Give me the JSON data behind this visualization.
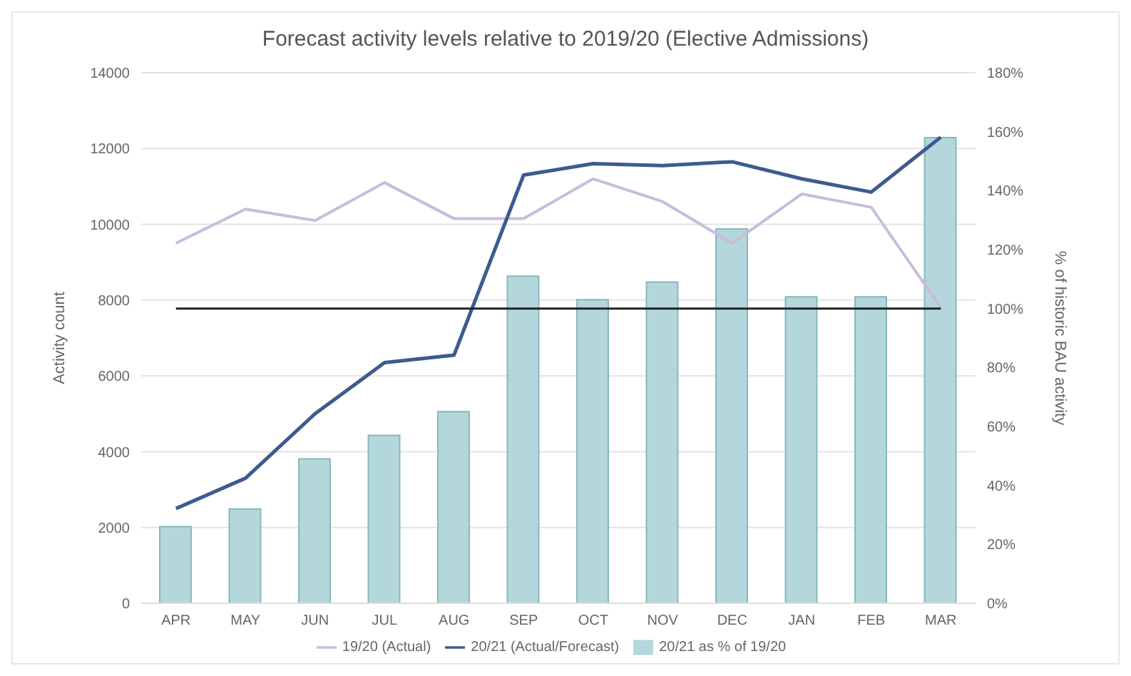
{
  "chart_data": {
    "type": "bar",
    "title": "Forecast activity levels relative to 2019/20 (Elective Admissions)",
    "ylabel": "Activity count",
    "y2label": "% of historic BAU activity",
    "categories": [
      "APR",
      "MAY",
      "JUN",
      "JUL",
      "AUG",
      "SEP",
      "OCT",
      "NOV",
      "DEC",
      "JAN",
      "FEB",
      "MAR"
    ],
    "series": [
      {
        "name": "20/21 as % of 19/20",
        "axis": "y2",
        "color": "#b3d7da",
        "values": [
          26,
          32,
          49,
          57,
          65,
          111,
          103,
          109,
          127,
          104,
          104,
          158
        ]
      },
      {
        "name": "19/20 (Actual)",
        "type": "line",
        "axis": "y",
        "color": "#c9bcdb",
        "values": [
          9500,
          10400,
          10100,
          11100,
          10150,
          10150,
          11200,
          10600,
          9500,
          10800,
          10450,
          7800
        ]
      },
      {
        "name": "20/21 (Actual/Forecast)",
        "type": "line",
        "axis": "y",
        "color": "#3e5a8e",
        "values": [
          2500,
          3300,
          5000,
          6350,
          6550,
          11300,
          11600,
          11550,
          11650,
          11200,
          10850,
          12300
        ]
      }
    ],
    "ylim": [
      0,
      14000
    ],
    "yticks": [
      0,
      2000,
      4000,
      6000,
      8000,
      10000,
      12000,
      14000
    ],
    "y2lim": [
      0,
      180
    ],
    "y2ticks": [
      {
        "value": 0,
        "label": "0%"
      },
      {
        "value": 20,
        "label": "20%"
      },
      {
        "value": 40,
        "label": "40%"
      },
      {
        "value": 60,
        "label": "60%"
      },
      {
        "value": 80,
        "label": "80%"
      },
      {
        "value": 100,
        "label": "100%"
      },
      {
        "value": 120,
        "label": "120%"
      },
      {
        "value": 140,
        "label": "140%"
      },
      {
        "value": 160,
        "label": "160%"
      },
      {
        "value": 180,
        "label": "180%"
      }
    ],
    "ref_lines": [
      {
        "axis": "y2",
        "value": 100,
        "color": "#222222"
      }
    ],
    "grid": "y",
    "legend": "bottom",
    "marker": "none"
  }
}
